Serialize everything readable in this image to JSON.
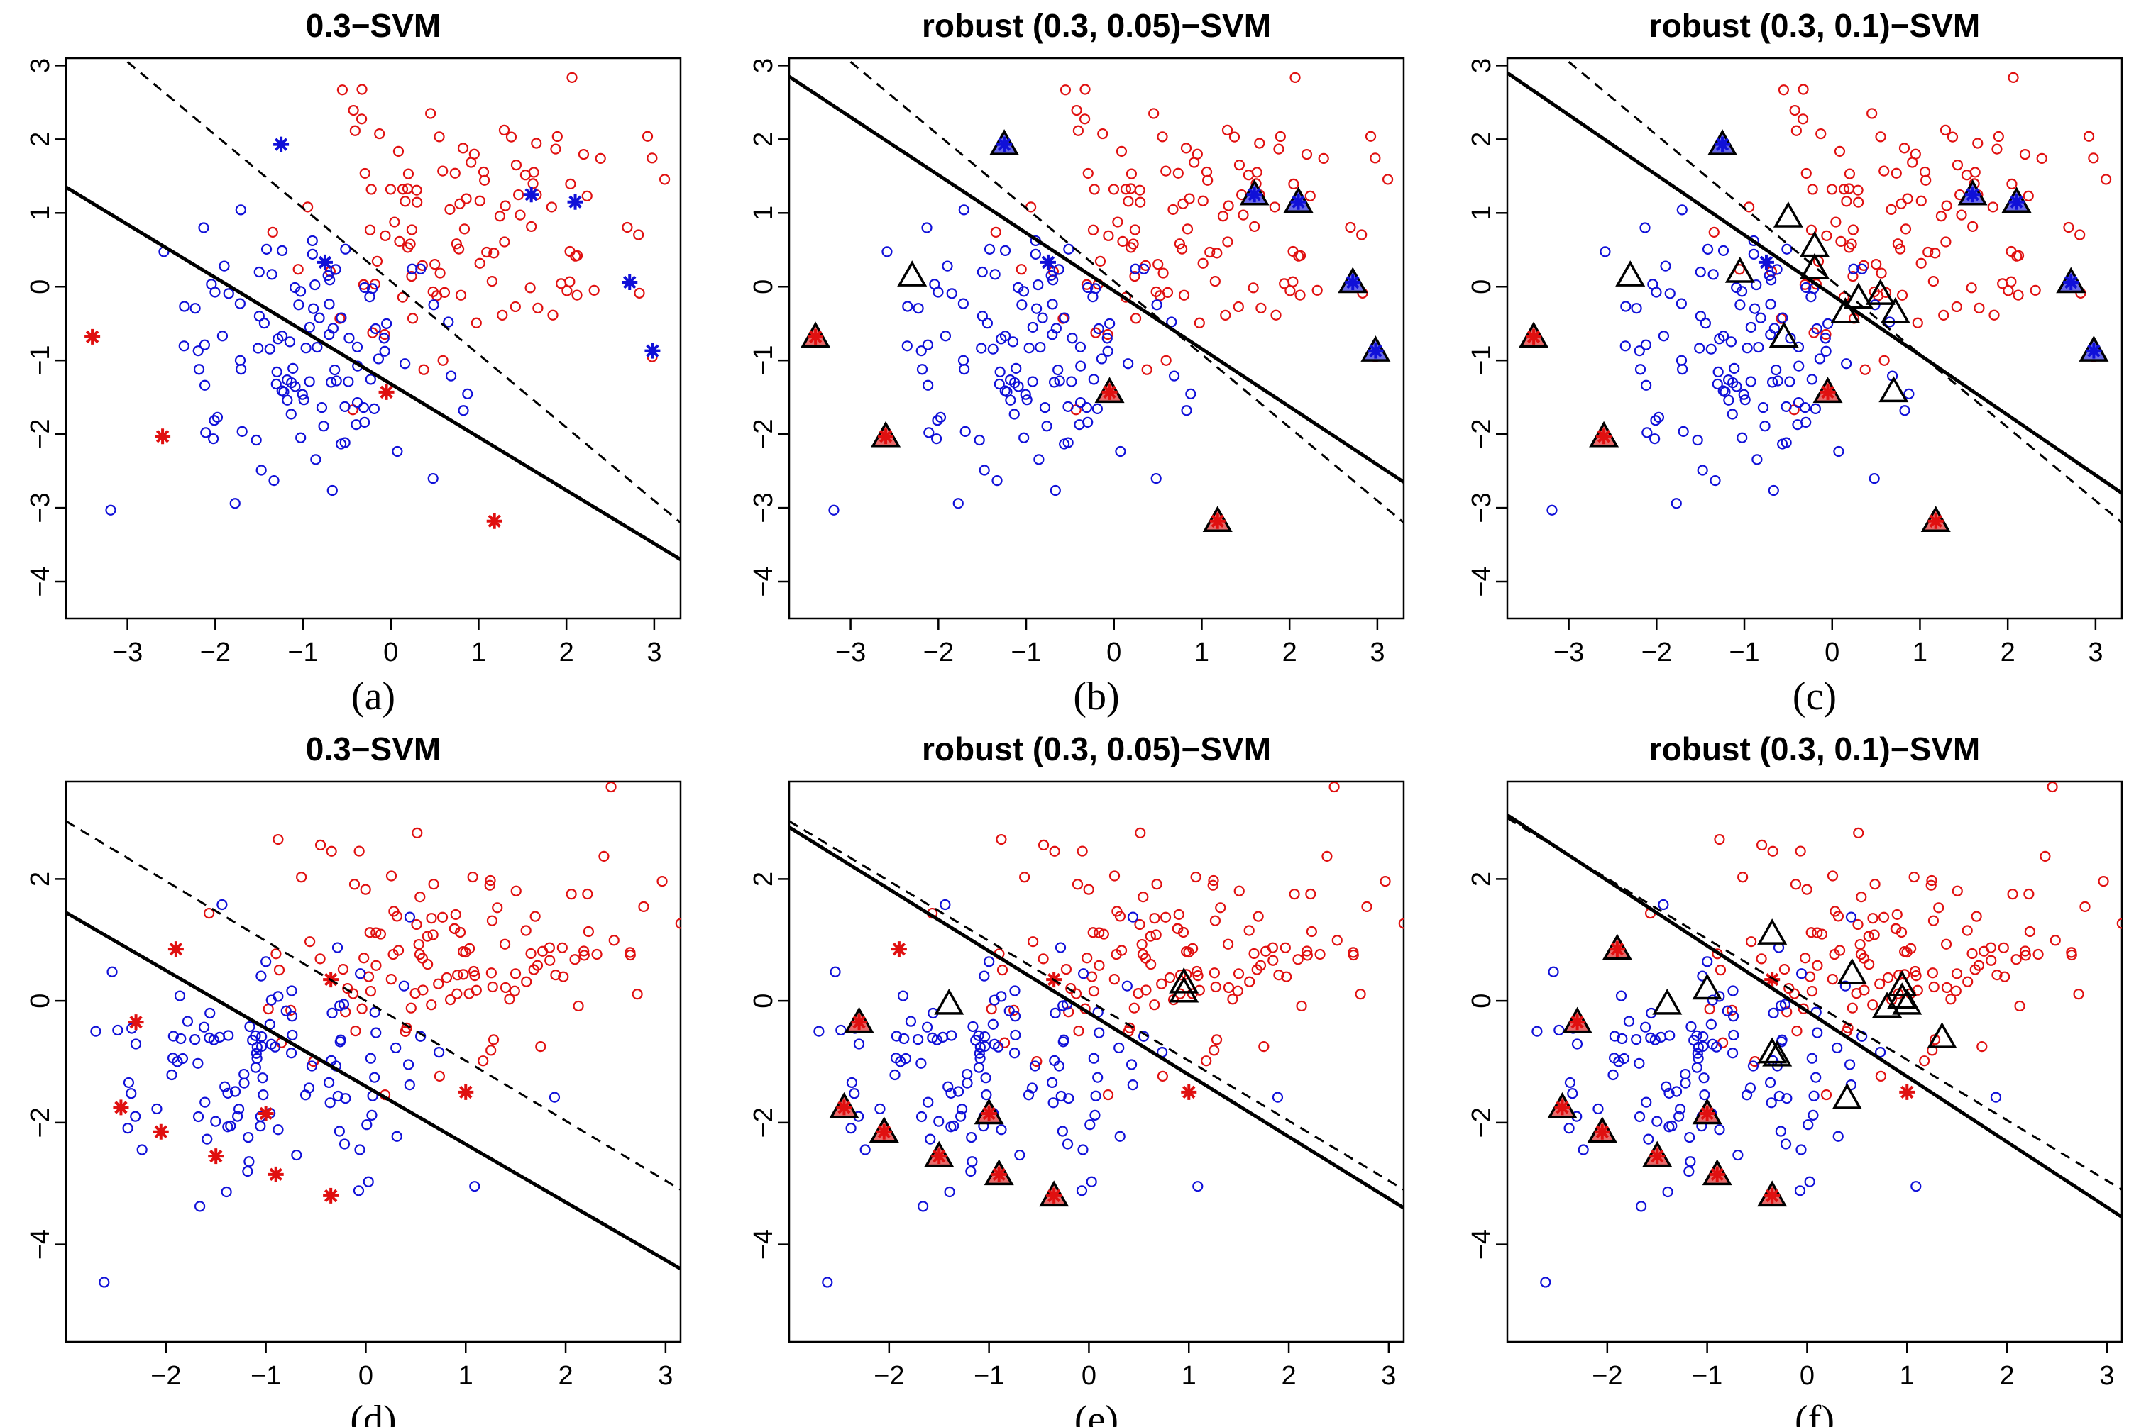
{
  "chart_data": [
    {
      "type": "scatter",
      "title": "0.3−SVM",
      "label": "(a)",
      "xlim": [
        -3.7,
        3.3
      ],
      "ylim": [
        -4.5,
        3.1
      ],
      "xticks": [
        -3,
        -2,
        -1,
        0,
        1,
        2,
        3
      ],
      "yticks": [
        -4,
        -3,
        -2,
        -1,
        0,
        1,
        2,
        3
      ],
      "tick_labels_x": [
        "−3",
        "−2",
        "−1",
        "0",
        "1",
        "2",
        "3"
      ],
      "tick_labels_y": [
        "−4",
        "−3",
        "−2",
        "−1",
        "0",
        "1",
        "2",
        "3"
      ],
      "lines": [
        {
          "name": "solid",
          "style": "solid",
          "points": [
            [
              -3.7,
              1.35
            ],
            [
              3.3,
              -3.7
            ]
          ]
        },
        {
          "name": "dashed",
          "style": "dashed",
          "points": [
            [
              -3.0,
              3.05
            ],
            [
              3.3,
              -3.2
            ]
          ]
        }
      ],
      "stars": {
        "red": [
          [
            -3.4,
            -0.68
          ],
          [
            -2.6,
            -2.03
          ],
          [
            -0.05,
            -1.43
          ],
          [
            1.18,
            -3.18
          ]
        ],
        "blue": [
          [
            -1.25,
            1.93
          ],
          [
            -0.75,
            0.33
          ],
          [
            1.6,
            1.25
          ],
          [
            2.1,
            1.15
          ],
          [
            2.72,
            0.06
          ],
          [
            2.98,
            -0.87
          ]
        ]
      },
      "triangles": {
        "red": [],
        "blue": [],
        "open": []
      }
    },
    {
      "type": "scatter",
      "title": "robust (0.3, 0.05)−SVM",
      "label": "(b)",
      "xlim": [
        -3.7,
        3.3
      ],
      "ylim": [
        -4.5,
        3.1
      ],
      "xticks": [
        -3,
        -2,
        -1,
        0,
        1,
        2,
        3
      ],
      "yticks": [
        -4,
        -3,
        -2,
        -1,
        0,
        1,
        2,
        3
      ],
      "tick_labels_x": [
        "−3",
        "−2",
        "−1",
        "0",
        "1",
        "2",
        "3"
      ],
      "tick_labels_y": [
        "−4",
        "−3",
        "−2",
        "−1",
        "0",
        "1",
        "2",
        "3"
      ],
      "lines": [
        {
          "name": "solid",
          "style": "solid",
          "points": [
            [
              -3.7,
              2.85
            ],
            [
              3.3,
              -2.65
            ]
          ]
        },
        {
          "name": "dashed",
          "style": "dashed",
          "points": [
            [
              -3.0,
              3.05
            ],
            [
              3.3,
              -3.2
            ]
          ]
        }
      ],
      "stars": {
        "red": [
          [
            -3.4,
            -0.68
          ],
          [
            -2.6,
            -2.03
          ],
          [
            -0.05,
            -1.43
          ],
          [
            1.18,
            -3.18
          ]
        ],
        "blue": [
          [
            -1.25,
            1.93
          ],
          [
            -0.75,
            0.33
          ],
          [
            1.6,
            1.25
          ],
          [
            2.1,
            1.15
          ],
          [
            2.72,
            0.06
          ],
          [
            2.98,
            -0.87
          ]
        ]
      },
      "triangles": {
        "red": [
          [
            -3.4,
            -0.68
          ],
          [
            -2.6,
            -2.03
          ],
          [
            -0.05,
            -1.43
          ],
          [
            1.18,
            -3.18
          ]
        ],
        "blue": [
          [
            -1.25,
            1.93
          ],
          [
            1.6,
            1.25
          ],
          [
            2.1,
            1.15
          ],
          [
            2.72,
            0.06
          ],
          [
            2.98,
            -0.87
          ]
        ],
        "open": [
          [
            -2.3,
            0.15
          ]
        ]
      }
    },
    {
      "type": "scatter",
      "title": "robust (0.3, 0.1)−SVM",
      "label": "(c)",
      "xlim": [
        -3.7,
        3.3
      ],
      "ylim": [
        -4.5,
        3.1
      ],
      "xticks": [
        -3,
        -2,
        -1,
        0,
        1,
        2,
        3
      ],
      "yticks": [
        -4,
        -3,
        -2,
        -1,
        0,
        1,
        2,
        3
      ],
      "tick_labels_x": [
        "−3",
        "−2",
        "−1",
        "0",
        "1",
        "2",
        "3"
      ],
      "tick_labels_y": [
        "−4",
        "−3",
        "−2",
        "−1",
        "0",
        "1",
        "2",
        "3"
      ],
      "lines": [
        {
          "name": "solid",
          "style": "solid",
          "points": [
            [
              -3.7,
              2.9
            ],
            [
              3.3,
              -2.8
            ]
          ]
        },
        {
          "name": "dashed",
          "style": "dashed",
          "points": [
            [
              -3.0,
              3.05
            ],
            [
              3.3,
              -3.2
            ]
          ]
        }
      ],
      "stars": {
        "red": [
          [
            -3.4,
            -0.68
          ],
          [
            -2.6,
            -2.03
          ],
          [
            -0.05,
            -1.43
          ],
          [
            1.18,
            -3.18
          ]
        ],
        "blue": [
          [
            -1.25,
            1.93
          ],
          [
            -0.75,
            0.33
          ],
          [
            1.6,
            1.25
          ],
          [
            2.1,
            1.15
          ],
          [
            2.72,
            0.06
          ],
          [
            2.98,
            -0.87
          ]
        ]
      },
      "triangles": {
        "red": [
          [
            -3.4,
            -0.68
          ],
          [
            -2.6,
            -2.03
          ],
          [
            -0.05,
            -1.43
          ],
          [
            1.18,
            -3.18
          ]
        ],
        "blue": [
          [
            -1.25,
            1.93
          ],
          [
            1.6,
            1.25
          ],
          [
            2.1,
            1.15
          ],
          [
            2.72,
            0.06
          ],
          [
            2.98,
            -0.87
          ]
        ],
        "open": [
          [
            -2.3,
            0.15
          ],
          [
            -1.05,
            0.2
          ],
          [
            -0.5,
            0.95
          ],
          [
            -0.2,
            0.55
          ],
          [
            -0.2,
            0.25
          ],
          [
            -0.55,
            -0.68
          ],
          [
            0.15,
            -0.35
          ],
          [
            0.3,
            -0.15
          ],
          [
            0.55,
            -0.1
          ],
          [
            0.72,
            -0.35
          ],
          [
            0.7,
            -1.42
          ]
        ]
      }
    },
    {
      "type": "scatter",
      "title": "0.3−SVM",
      "label": "(d)",
      "xlim": [
        -3.0,
        3.15
      ],
      "ylim": [
        -5.6,
        3.6
      ],
      "xticks": [
        -2,
        -1,
        0,
        1,
        2,
        3
      ],
      "yticks": [
        -4,
        -2,
        0,
        2
      ],
      "tick_labels_x": [
        "−2",
        "−1",
        "0",
        "1",
        "2",
        "3"
      ],
      "tick_labels_y": [
        "−4",
        "−2",
        "0",
        "2"
      ],
      "lines": [
        {
          "name": "solid",
          "style": "solid",
          "points": [
            [
              -3.0,
              1.45
            ],
            [
              3.15,
              -4.4
            ]
          ]
        },
        {
          "name": "dashed",
          "style": "dashed",
          "points": [
            [
              -3.0,
              2.95
            ],
            [
              3.15,
              -3.1
            ]
          ]
        }
      ],
      "stars": {
        "red": [
          [
            -1.9,
            0.85
          ],
          [
            -2.3,
            -0.35
          ],
          [
            -2.45,
            -1.75
          ],
          [
            -2.05,
            -2.15
          ],
          [
            -1.5,
            -2.55
          ],
          [
            -1.0,
            -1.85
          ],
          [
            -0.9,
            -2.85
          ],
          [
            -0.35,
            0.35
          ],
          [
            -0.35,
            -3.2
          ],
          [
            1.0,
            -1.5
          ]
        ],
        "blue": []
      },
      "triangles": {
        "red": [],
        "blue": [],
        "open": []
      }
    },
    {
      "type": "scatter",
      "title": "robust (0.3, 0.05)−SVM",
      "label": "(e)",
      "xlim": [
        -3.0,
        3.15
      ],
      "ylim": [
        -5.6,
        3.6
      ],
      "xticks": [
        -2,
        -1,
        0,
        1,
        2,
        3
      ],
      "yticks": [
        -4,
        -2,
        0,
        2
      ],
      "tick_labels_x": [
        "−2",
        "−1",
        "0",
        "1",
        "2",
        "3"
      ],
      "tick_labels_y": [
        "−4",
        "−2",
        "0",
        "2"
      ],
      "lines": [
        {
          "name": "solid",
          "style": "solid",
          "points": [
            [
              -3.0,
              2.85
            ],
            [
              3.15,
              -3.4
            ]
          ]
        },
        {
          "name": "dashed",
          "style": "dashed",
          "points": [
            [
              -3.0,
              2.95
            ],
            [
              3.15,
              -3.1
            ]
          ]
        }
      ],
      "stars": {
        "red": [
          [
            -1.9,
            0.85
          ],
          [
            -2.3,
            -0.35
          ],
          [
            -2.45,
            -1.75
          ],
          [
            -2.05,
            -2.15
          ],
          [
            -1.5,
            -2.55
          ],
          [
            -1.0,
            -1.85
          ],
          [
            -0.9,
            -2.85
          ],
          [
            -0.35,
            0.35
          ],
          [
            -0.35,
            -3.2
          ],
          [
            1.0,
            -1.5
          ]
        ],
        "blue": []
      },
      "triangles": {
        "red": [
          [
            -2.3,
            -0.35
          ],
          [
            -2.45,
            -1.75
          ],
          [
            -2.05,
            -2.15
          ],
          [
            -1.5,
            -2.55
          ],
          [
            -1.0,
            -1.85
          ],
          [
            -0.9,
            -2.85
          ],
          [
            -0.35,
            -3.2
          ]
        ],
        "blue": [],
        "open": [
          [
            -1.4,
            -0.05
          ],
          [
            0.95,
            0.3
          ],
          [
            0.95,
            0.15
          ]
        ]
      }
    },
    {
      "type": "scatter",
      "title": "robust (0.3, 0.1)−SVM",
      "label": "(f)",
      "xlim": [
        -3.0,
        3.15
      ],
      "ylim": [
        -5.6,
        3.6
      ],
      "xticks": [
        -2,
        -1,
        0,
        1,
        2,
        3
      ],
      "yticks": [
        -4,
        -2,
        0,
        2
      ],
      "tick_labels_x": [
        "−2",
        "−1",
        "0",
        "1",
        "2",
        "3"
      ],
      "tick_labels_y": [
        "−4",
        "−2",
        "0",
        "2"
      ],
      "lines": [
        {
          "name": "solid",
          "style": "solid",
          "points": [
            [
              -3.0,
              3.05
            ],
            [
              3.15,
              -3.55
            ]
          ]
        },
        {
          "name": "dashed",
          "style": "dashed",
          "points": [
            [
              -3.0,
              3.0
            ],
            [
              3.15,
              -3.1
            ]
          ]
        }
      ],
      "stars": {
        "red": [
          [
            -1.9,
            0.85
          ],
          [
            -2.3,
            -0.35
          ],
          [
            -2.45,
            -1.75
          ],
          [
            -2.05,
            -2.15
          ],
          [
            -1.5,
            -2.55
          ],
          [
            -1.0,
            -1.85
          ],
          [
            -0.9,
            -2.85
          ],
          [
            -0.35,
            0.35
          ],
          [
            -0.35,
            -3.2
          ],
          [
            1.0,
            -1.5
          ]
        ],
        "blue": []
      },
      "triangles": {
        "red": [
          [
            -1.9,
            0.85
          ],
          [
            -2.3,
            -0.35
          ],
          [
            -2.45,
            -1.75
          ],
          [
            -2.05,
            -2.15
          ],
          [
            -1.5,
            -2.55
          ],
          [
            -1.0,
            -1.85
          ],
          [
            -0.9,
            -2.85
          ],
          [
            -0.35,
            -3.2
          ]
        ],
        "blue": [],
        "open": [
          [
            -1.4,
            -0.05
          ],
          [
            -1.0,
            0.2
          ],
          [
            -0.35,
            1.1
          ],
          [
            -0.3,
            -0.9
          ],
          [
            -0.35,
            -0.85
          ],
          [
            0.45,
            0.45
          ],
          [
            0.4,
            -1.6
          ],
          [
            0.8,
            -0.1
          ],
          [
            0.95,
            0.25
          ],
          [
            0.95,
            0.05
          ],
          [
            1.0,
            -0.05
          ],
          [
            1.35,
            -0.6
          ]
        ]
      }
    }
  ]
}
